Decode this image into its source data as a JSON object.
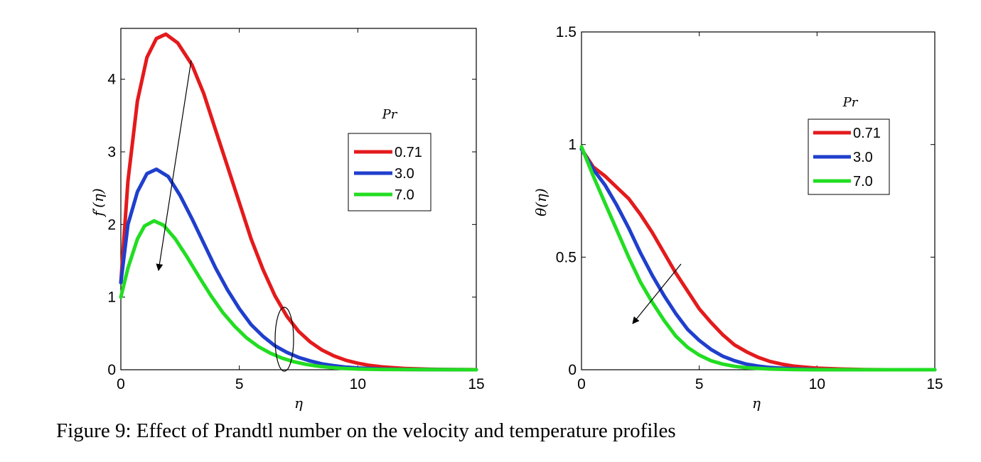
{
  "caption": "Figure 9: Effect of Prandtl number on the velocity and temperature profiles",
  "chart_data": [
    {
      "type": "line",
      "xlabel": "η",
      "ylabel": "f′(η)",
      "xlim": [
        0,
        15
      ],
      "ylim": [
        0,
        4.7
      ],
      "xticks": [
        "0",
        "5",
        "10",
        "15"
      ],
      "yticks": [
        "0",
        "1",
        "2",
        "3",
        "4"
      ],
      "legend_title": "Pr",
      "legend_position": "right",
      "series": [
        {
          "name": "0.71",
          "color": "#e41a1c",
          "points": [
            [
              0,
              1.2
            ],
            [
              0.3,
              2.6
            ],
            [
              0.7,
              3.7
            ],
            [
              1.1,
              4.3
            ],
            [
              1.5,
              4.56
            ],
            [
              1.9,
              4.62
            ],
            [
              2.4,
              4.5
            ],
            [
              3,
              4.2
            ],
            [
              3.5,
              3.8
            ],
            [
              4,
              3.3
            ],
            [
              4.5,
              2.8
            ],
            [
              5,
              2.3
            ],
            [
              5.5,
              1.8
            ],
            [
              6,
              1.38
            ],
            [
              6.5,
              1.02
            ],
            [
              7,
              0.74
            ],
            [
              7.5,
              0.53
            ],
            [
              8,
              0.38
            ],
            [
              8.5,
              0.27
            ],
            [
              9,
              0.19
            ],
            [
              9.5,
              0.13
            ],
            [
              10,
              0.09
            ],
            [
              10.5,
              0.06
            ],
            [
              11,
              0.04
            ],
            [
              11.5,
              0.028
            ],
            [
              12,
              0.018
            ],
            [
              13,
              0.008
            ],
            [
              14,
              0.003
            ],
            [
              15,
              0.001
            ]
          ]
        },
        {
          "name": "3.0",
          "color": "#1f3fcc",
          "points": [
            [
              0,
              1.2
            ],
            [
              0.3,
              2.0
            ],
            [
              0.7,
              2.45
            ],
            [
              1.1,
              2.7
            ],
            [
              1.5,
              2.76
            ],
            [
              2,
              2.66
            ],
            [
              2.5,
              2.4
            ],
            [
              3,
              2.08
            ],
            [
              3.5,
              1.74
            ],
            [
              4,
              1.4
            ],
            [
              4.5,
              1.1
            ],
            [
              5,
              0.84
            ],
            [
              5.5,
              0.62
            ],
            [
              6,
              0.46
            ],
            [
              6.5,
              0.33
            ],
            [
              7,
              0.24
            ],
            [
              7.5,
              0.17
            ],
            [
              8,
              0.12
            ],
            [
              8.5,
              0.08
            ],
            [
              9,
              0.055
            ],
            [
              9.5,
              0.036
            ],
            [
              10,
              0.024
            ],
            [
              11,
              0.01
            ],
            [
              12,
              0.004
            ],
            [
              13,
              0.002
            ],
            [
              15,
              0.0
            ]
          ]
        },
        {
          "name": "7.0",
          "color": "#22dd22",
          "points": [
            [
              0,
              1.0
            ],
            [
              0.3,
              1.4
            ],
            [
              0.7,
              1.8
            ],
            [
              1,
              1.98
            ],
            [
              1.4,
              2.05
            ],
            [
              1.8,
              1.99
            ],
            [
              2.3,
              1.8
            ],
            [
              2.8,
              1.55
            ],
            [
              3.3,
              1.28
            ],
            [
              3.8,
              1.02
            ],
            [
              4.3,
              0.79
            ],
            [
              4.8,
              0.6
            ],
            [
              5.3,
              0.44
            ],
            [
              5.8,
              0.32
            ],
            [
              6.3,
              0.23
            ],
            [
              6.8,
              0.16
            ],
            [
              7.3,
              0.11
            ],
            [
              7.8,
              0.075
            ],
            [
              8.3,
              0.05
            ],
            [
              8.8,
              0.032
            ],
            [
              9.3,
              0.02
            ],
            [
              10,
              0.01
            ],
            [
              11,
              0.004
            ],
            [
              12,
              0.002
            ],
            [
              15,
              0.0
            ]
          ]
        }
      ]
    },
    {
      "type": "line",
      "xlabel": "η",
      "ylabel": "θ(η)",
      "xlim": [
        0,
        15
      ],
      "ylim": [
        0,
        1.5
      ],
      "xticks": [
        "0",
        "5",
        "10",
        "15"
      ],
      "yticks": [
        "0",
        "0.5",
        "1",
        "1.5"
      ],
      "legend_title": "Pr",
      "legend_position": "top-right",
      "series": [
        {
          "name": "0.71",
          "color": "#e41a1c",
          "points": [
            [
              0,
              0.98
            ],
            [
              0.5,
              0.9
            ],
            [
              1,
              0.86
            ],
            [
              1.5,
              0.81
            ],
            [
              2,
              0.76
            ],
            [
              2.5,
              0.69
            ],
            [
              3,
              0.61
            ],
            [
              3.5,
              0.52
            ],
            [
              4,
              0.43
            ],
            [
              4.5,
              0.35
            ],
            [
              5,
              0.27
            ],
            [
              5.5,
              0.21
            ],
            [
              6,
              0.155
            ],
            [
              6.5,
              0.11
            ],
            [
              7,
              0.08
            ],
            [
              7.5,
              0.055
            ],
            [
              8,
              0.037
            ],
            [
              8.5,
              0.025
            ],
            [
              9,
              0.016
            ],
            [
              10,
              0.007
            ],
            [
              11,
              0.003
            ],
            [
              12,
              0.001
            ],
            [
              13,
              0.0
            ]
          ]
        },
        {
          "name": "3.0",
          "color": "#1f3fcc",
          "points": [
            [
              0,
              0.98
            ],
            [
              0.5,
              0.89
            ],
            [
              1,
              0.82
            ],
            [
              1.5,
              0.73
            ],
            [
              2,
              0.63
            ],
            [
              2.5,
              0.52
            ],
            [
              3,
              0.42
            ],
            [
              3.5,
              0.33
            ],
            [
              4,
              0.25
            ],
            [
              4.5,
              0.18
            ],
            [
              5,
              0.13
            ],
            [
              5.5,
              0.09
            ],
            [
              6,
              0.06
            ],
            [
              6.5,
              0.04
            ],
            [
              7,
              0.025
            ],
            [
              7.5,
              0.016
            ],
            [
              8,
              0.01
            ],
            [
              9,
              0.004
            ],
            [
              10,
              0.001
            ],
            [
              11,
              0.0
            ],
            [
              15,
              0.0
            ]
          ]
        },
        {
          "name": "7.0",
          "color": "#22dd22",
          "points": [
            [
              0,
              0.99
            ],
            [
              0.5,
              0.86
            ],
            [
              1,
              0.74
            ],
            [
              1.5,
              0.62
            ],
            [
              2,
              0.5
            ],
            [
              2.5,
              0.39
            ],
            [
              3,
              0.3
            ],
            [
              3.5,
              0.22
            ],
            [
              4,
              0.15
            ],
            [
              4.5,
              0.1
            ],
            [
              5,
              0.065
            ],
            [
              5.5,
              0.04
            ],
            [
              6,
              0.025
            ],
            [
              6.5,
              0.015
            ],
            [
              7,
              0.009
            ],
            [
              8,
              0.003
            ],
            [
              9,
              0.001
            ],
            [
              10,
              0.0
            ],
            [
              15,
              0.0
            ]
          ]
        }
      ]
    }
  ]
}
